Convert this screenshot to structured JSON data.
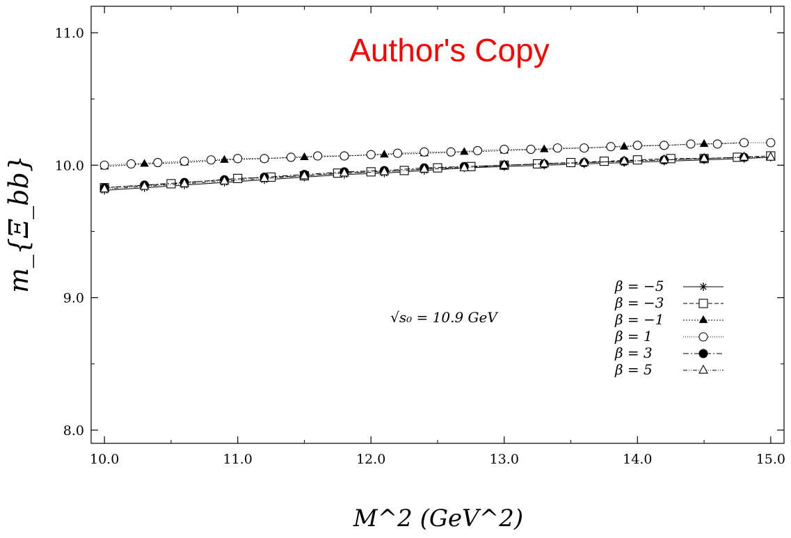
{
  "watermark": "Author's Copy",
  "chart_data": {
    "type": "line",
    "title": "",
    "xlabel": "M^2 (GeV^2)",
    "ylabel": "m_{Ξ_bb}",
    "xlim": [
      9.9,
      15.1
    ],
    "ylim": [
      7.9,
      11.2
    ],
    "x_ticks": [
      "10.0",
      "11.0",
      "12.0",
      "13.0",
      "14.0",
      "15.0"
    ],
    "y_ticks": [
      "8.0",
      "9.0",
      "10.0",
      "11.0"
    ],
    "grid": false,
    "legend_position": "bottom-right",
    "annotation": "√s₀ = 10.9 GeV",
    "series": [
      {
        "name": "β = −5",
        "marker": "star",
        "dash": "none",
        "x": [
          10.0,
          10.3,
          10.6,
          10.9,
          11.2,
          11.5,
          11.8,
          12.1,
          12.4,
          12.7,
          13.0,
          13.3,
          13.6,
          13.9,
          14.2,
          14.5,
          14.8,
          15.0
        ],
        "y": [
          9.81,
          9.83,
          9.85,
          9.87,
          9.89,
          9.91,
          9.93,
          9.94,
          9.96,
          9.98,
          9.99,
          10.0,
          10.01,
          10.02,
          10.03,
          10.04,
          10.05,
          10.06
        ]
      },
      {
        "name": "β = −3",
        "marker": "square",
        "dash": "6,3",
        "x": [
          10.0,
          10.5,
          11.0,
          11.25,
          11.5,
          11.75,
          12.0,
          12.25,
          12.5,
          12.75,
          13.0,
          13.25,
          13.5,
          13.75,
          14.0,
          14.25,
          14.5,
          14.75,
          15.0
        ],
        "y": [
          9.83,
          9.86,
          9.9,
          9.91,
          9.92,
          9.94,
          9.95,
          9.96,
          9.98,
          9.99,
          10.0,
          10.01,
          10.02,
          10.03,
          10.04,
          10.05,
          10.05,
          10.06,
          10.07
        ]
      },
      {
        "name": "β = −1",
        "marker": "filled-triangle",
        "dash": "2,2",
        "x": [
          10.0,
          10.3,
          10.6,
          10.9,
          11.2,
          11.5,
          11.8,
          12.1,
          12.4,
          12.7,
          13.0,
          13.3,
          13.6,
          13.9,
          14.2,
          14.5,
          14.8
        ],
        "y": [
          9.99,
          10.01,
          10.02,
          10.04,
          10.05,
          10.06,
          10.07,
          10.08,
          10.09,
          10.1,
          10.11,
          10.12,
          10.13,
          10.14,
          10.15,
          10.16,
          10.17
        ]
      },
      {
        "name": "β = 1",
        "marker": "circle",
        "dash": "1,2",
        "x": [
          10.0,
          10.2,
          10.4,
          10.6,
          10.8,
          11.0,
          11.2,
          11.4,
          11.6,
          11.8,
          12.0,
          12.2,
          12.4,
          12.6,
          12.8,
          13.0,
          13.2,
          13.4,
          13.6,
          13.8,
          14.0,
          14.2,
          14.4,
          14.6,
          14.8,
          15.0
        ],
        "y": [
          10.0,
          10.01,
          10.02,
          10.03,
          10.04,
          10.05,
          10.05,
          10.06,
          10.07,
          10.07,
          10.08,
          10.09,
          10.1,
          10.1,
          10.11,
          10.12,
          10.12,
          10.13,
          10.13,
          10.14,
          10.15,
          10.15,
          10.16,
          10.16,
          10.17,
          10.17
        ]
      },
      {
        "name": "β = 3",
        "marker": "filled-circle",
        "dash": "8,3,2,3",
        "x": [
          10.0,
          10.3,
          10.6,
          10.9,
          11.2,
          11.5,
          11.8,
          12.1,
          12.4,
          12.7,
          13.0,
          13.3,
          13.6,
          13.9,
          14.2,
          14.5,
          14.8
        ],
        "y": [
          9.83,
          9.85,
          9.87,
          9.89,
          9.91,
          9.93,
          9.95,
          9.96,
          9.98,
          9.99,
          10.0,
          10.01,
          10.02,
          10.03,
          10.04,
          10.05,
          10.06
        ]
      },
      {
        "name": "β = 5",
        "marker": "triangle",
        "dash": "6,2,1,2,1,2",
        "x": [
          10.0,
          10.3,
          10.6,
          10.9,
          11.2,
          11.5,
          11.8,
          12.1,
          12.4,
          12.7,
          13.0,
          13.3,
          13.6,
          13.9,
          14.2,
          14.5,
          14.8,
          15.0
        ],
        "y": [
          9.82,
          9.84,
          9.86,
          9.88,
          9.9,
          9.92,
          9.94,
          9.95,
          9.97,
          9.98,
          10.0,
          10.01,
          10.02,
          10.03,
          10.04,
          10.05,
          10.06,
          10.06
        ]
      }
    ]
  }
}
